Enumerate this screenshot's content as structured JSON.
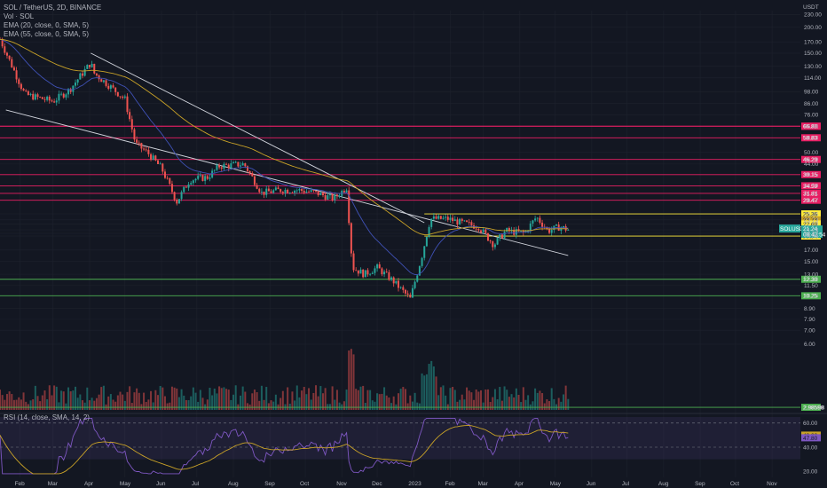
{
  "legend": {
    "title": "SOL / TetherUS, 2D, BINANCE",
    "vol": "Vol · SOL",
    "ema20": "EMA (20, close, 0, SMA, 5)",
    "ema55": "EMA (55, close, 0, SMA, 5)",
    "rsi": "RSI (14, close, SMA, 14, 2)"
  },
  "currency_label": "USDT",
  "colors": {
    "background": "#131722",
    "up": "#26a69a",
    "down": "#ef5350",
    "ema20": "#3f51b5",
    "ema55": "#c9a227",
    "resistance": "#e91e63",
    "support": "#4caf50",
    "range": "#ffeb3b",
    "rsi": "#7e57c2"
  },
  "chart_data": {
    "type": "candlestick",
    "x_axis": {
      "ticks": [
        "Feb",
        "Mar",
        "Apr",
        "May",
        "Jun",
        "Jul",
        "Aug",
        "Sep",
        "Oct",
        "Nov",
        "Dec",
        "2023",
        "Feb",
        "Mar",
        "Apr",
        "May",
        "Jun",
        "Jul",
        "Aug",
        "Sep",
        "Oct",
        "Nov"
      ]
    },
    "y_axis": {
      "scale": "log",
      "ticks": [
        "230.00",
        "200.00",
        "170.00",
        "150.00",
        "130.00",
        "114.00",
        "98.00",
        "86.00",
        "76.00",
        "66.90",
        "66.81",
        "58.83",
        "50.00",
        "46.29",
        "44.00",
        "39.15",
        "34.59",
        "31.81",
        "29.47",
        "25.36",
        "23.73",
        "22.69",
        "21.24",
        "20.42",
        "19.84",
        "17.00",
        "15.00",
        "13.00",
        "12.30",
        "11.50",
        "10.25",
        "8.90",
        "7.90",
        "7.00",
        "6.00",
        "2.98598"
      ]
    },
    "last_price": {
      "symbol": "SOLUSDT",
      "value": "21.24",
      "countdown": "08:42:54"
    },
    "horizontal_levels": [
      {
        "value": 66.9,
        "label": "66.90",
        "kind": "resistance"
      },
      {
        "value": 66.81,
        "label": "66.81",
        "kind": "resistance"
      },
      {
        "value": 58.83,
        "label": "58.83",
        "kind": "resistance"
      },
      {
        "value": 46.29,
        "label": "46.29",
        "kind": "resistance"
      },
      {
        "value": 39.15,
        "label": "39.15",
        "kind": "resistance"
      },
      {
        "value": 34.59,
        "label": "34.59",
        "kind": "resistance"
      },
      {
        "value": 31.81,
        "label": "31.81",
        "kind": "resistance"
      },
      {
        "value": 29.47,
        "label": "29.47",
        "kind": "resistance"
      },
      {
        "value": 25.36,
        "label": "25.36",
        "kind": "range"
      },
      {
        "value": 19.84,
        "label": "19.84",
        "kind": "range"
      },
      {
        "value": 12.3,
        "label": "12.30",
        "kind": "support"
      },
      {
        "value": 10.25,
        "label": "10.25",
        "kind": "support"
      },
      {
        "value": 2.98598,
        "label": "2.98598",
        "kind": "support"
      }
    ],
    "price_markers": [
      {
        "value": 23.73,
        "label": "23.73",
        "kind": "ema55"
      },
      {
        "value": 22.69,
        "label": "22.69",
        "kind": "range"
      },
      {
        "value": 20.42,
        "label": "20.42",
        "kind": "ema20"
      }
    ],
    "anchors": [
      {
        "date": "2022-01-15",
        "price": 175
      },
      {
        "date": "2022-02-05",
        "price": 95
      },
      {
        "date": "2022-03-01",
        "price": 88
      },
      {
        "date": "2022-03-15",
        "price": 100
      },
      {
        "date": "2022-04-02",
        "price": 135
      },
      {
        "date": "2022-04-05",
        "price": 120
      },
      {
        "date": "2022-04-20",
        "price": 102
      },
      {
        "date": "2022-05-01",
        "price": 90
      },
      {
        "date": "2022-05-10",
        "price": 55
      },
      {
        "date": "2022-05-20",
        "price": 50
      },
      {
        "date": "2022-06-01",
        "price": 42
      },
      {
        "date": "2022-06-14",
        "price": 29
      },
      {
        "date": "2022-06-25",
        "price": 37
      },
      {
        "date": "2022-07-10",
        "price": 38
      },
      {
        "date": "2022-07-20",
        "price": 43
      },
      {
        "date": "2022-08-10",
        "price": 44
      },
      {
        "date": "2022-08-25",
        "price": 32
      },
      {
        "date": "2022-09-10",
        "price": 33
      },
      {
        "date": "2022-09-25",
        "price": 33
      },
      {
        "date": "2022-10-10",
        "price": 32
      },
      {
        "date": "2022-10-25",
        "price": 30
      },
      {
        "date": "2022-11-05",
        "price": 34
      },
      {
        "date": "2022-11-10",
        "price": 14
      },
      {
        "date": "2022-11-20",
        "price": 13
      },
      {
        "date": "2022-12-01",
        "price": 14
      },
      {
        "date": "2022-12-15",
        "price": 12
      },
      {
        "date": "2022-12-29",
        "price": 9.9
      },
      {
        "date": "2023-01-08",
        "price": 16
      },
      {
        "date": "2023-01-15",
        "price": 24
      },
      {
        "date": "2023-01-30",
        "price": 24
      },
      {
        "date": "2023-02-10",
        "price": 23
      },
      {
        "date": "2023-02-25",
        "price": 22
      },
      {
        "date": "2023-03-10",
        "price": 18
      },
      {
        "date": "2023-03-20",
        "price": 21
      },
      {
        "date": "2023-04-05",
        "price": 20.5
      },
      {
        "date": "2023-04-15",
        "price": 24.5
      },
      {
        "date": "2023-04-25",
        "price": 21
      },
      {
        "date": "2023-05-05",
        "price": 22
      },
      {
        "date": "2023-05-12",
        "price": 21.24
      }
    ],
    "channel_lines": [
      {
        "from": {
          "date": "2022-04-02",
          "price": 150
        },
        "to": {
          "date": "2023-01-10",
          "price": 23
        }
      },
      {
        "from": {
          "date": "2022-01-20",
          "price": 80
        },
        "to": {
          "date": "2023-05-12",
          "price": 16
        }
      }
    ],
    "rsi": {
      "ticks": [
        "60.00",
        "49.99",
        "47.80",
        "40.00",
        "20.00"
      ],
      "value": 47.8,
      "signal": 49.99
    }
  }
}
